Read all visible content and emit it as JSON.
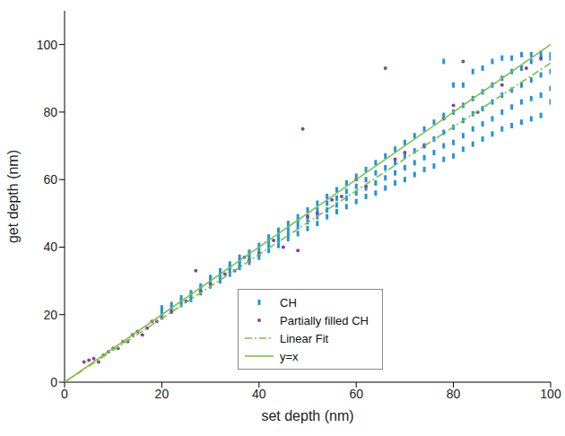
{
  "chart_data": {
    "type": "scatter",
    "xlabel": "set depth (nm)",
    "ylabel": "get depth (nm)",
    "xlim": [
      0,
      100
    ],
    "xticks": [
      0,
      20,
      40,
      60,
      80,
      100
    ],
    "ylim": [
      0,
      110
    ],
    "yticks": [
      0,
      20,
      40,
      60,
      80,
      100
    ],
    "grid": false,
    "legend": "lower center",
    "series": [
      {
        "name": "CH",
        "type": "scatter",
        "marker": "dash",
        "color": "#2196d8",
        "x": [
          20,
          20,
          20,
          20,
          22,
          22,
          22,
          24,
          24,
          24,
          26,
          26,
          26,
          28,
          28,
          28,
          30,
          30,
          30,
          30,
          32,
          32,
          32,
          32,
          34,
          34,
          34,
          34,
          36,
          36,
          36,
          36,
          38,
          38,
          38,
          38,
          40,
          40,
          40,
          40,
          42,
          42,
          42,
          42,
          44,
          44,
          44,
          44,
          46,
          46,
          46,
          46,
          48,
          48,
          48,
          48,
          50,
          50,
          50,
          50,
          52,
          52,
          52,
          52,
          54,
          54,
          54,
          54,
          56,
          56,
          56,
          56,
          58,
          58,
          58,
          58,
          60,
          60,
          60,
          60,
          62,
          62,
          62,
          62,
          64,
          64,
          64,
          64,
          66,
          66,
          66,
          66,
          68,
          68,
          68,
          68,
          70,
          70,
          70,
          70,
          72,
          72,
          72,
          72,
          74,
          74,
          74,
          74,
          76,
          76,
          76,
          76,
          78,
          78,
          78,
          78,
          78,
          80,
          80,
          80,
          80,
          80,
          82,
          82,
          82,
          82,
          82,
          84,
          84,
          84,
          84,
          84,
          86,
          86,
          86,
          86,
          86,
          88,
          88,
          88,
          88,
          88,
          90,
          90,
          90,
          90,
          90,
          92,
          92,
          92,
          92,
          92,
          94,
          94,
          94,
          94,
          94,
          96,
          96,
          96,
          96,
          96,
          98,
          98,
          98,
          98,
          98,
          100,
          100,
          100,
          100,
          100
        ],
        "values": [
          19.5,
          20.5,
          21,
          22,
          21,
          22,
          23,
          23,
          24,
          25,
          24.5,
          25.5,
          26.5,
          26.5,
          27.5,
          28.5,
          28.5,
          29.5,
          30.5,
          31,
          30,
          31,
          32,
          33,
          32,
          33,
          34,
          35,
          34,
          35,
          36,
          37,
          35.5,
          36.5,
          37.5,
          38.5,
          37,
          38,
          39,
          40.5,
          39,
          40.5,
          42,
          43,
          40.5,
          42,
          43.5,
          45,
          42.5,
          44,
          45.5,
          47,
          44,
          46,
          47.5,
          49,
          45.5,
          47.5,
          49,
          51,
          47,
          49,
          51,
          53,
          49,
          51,
          53,
          55,
          50.5,
          52.5,
          54.5,
          57,
          52,
          54.5,
          56.5,
          59,
          53.5,
          56,
          58,
          61,
          55,
          57.5,
          60,
          63,
          56,
          59,
          62,
          65,
          57.5,
          60.5,
          63.5,
          67,
          59,
          62,
          65,
          69,
          60,
          63.5,
          67,
          71,
          61.5,
          65,
          68.5,
          73,
          63,
          66.5,
          70,
          75,
          64,
          68,
          72,
          77,
          66,
          70,
          74,
          79,
          95,
          67,
          71,
          75.5,
          80,
          88,
          69,
          73,
          77.5,
          82,
          88,
          70.5,
          75,
          79.5,
          84,
          92,
          72,
          76.5,
          81,
          86,
          93,
          73.5,
          78,
          83,
          88,
          95,
          75,
          80,
          85,
          90,
          96,
          76,
          81.5,
          86.5,
          92,
          96,
          77,
          83,
          88,
          93,
          97,
          78,
          84,
          89.5,
          95,
          97,
          79,
          85,
          91,
          96,
          97.5,
          83,
          87,
          92,
          96,
          97
        ]
      },
      {
        "name": "Partially filled CH",
        "type": "scatter",
        "marker": "dot",
        "color": "#8b3fa8",
        "x": [
          4,
          5,
          6,
          7,
          8,
          9,
          10,
          11,
          12,
          13,
          14,
          15,
          16,
          17,
          18,
          19,
          20,
          22,
          25,
          27,
          28,
          30,
          33,
          35,
          37,
          38,
          40,
          43,
          45,
          48,
          49,
          50,
          52,
          55,
          57,
          60,
          62,
          66,
          68,
          70,
          74,
          78,
          80,
          82,
          85,
          90,
          95,
          98
        ],
        "values": [
          6,
          6.5,
          7,
          6,
          8,
          9,
          10,
          10,
          12,
          12,
          14,
          15,
          14,
          16,
          18,
          18,
          19,
          21,
          24,
          33,
          27,
          29,
          32,
          33,
          37,
          36,
          38,
          42,
          40,
          39,
          75,
          49,
          50,
          54,
          55,
          60,
          58,
          93,
          66,
          68,
          70,
          78,
          82,
          95,
          80,
          88,
          93,
          96
        ]
      },
      {
        "name": "Linear Fit",
        "type": "line",
        "line_style": "dashdot",
        "color": "#7dc242",
        "x": [
          0,
          100
        ],
        "values": [
          0,
          94.5
        ]
      },
      {
        "name": "y=x",
        "type": "line",
        "line_style": "solid",
        "color": "#7dc242",
        "x": [
          0,
          100
        ],
        "values": [
          0,
          100
        ]
      }
    ]
  }
}
